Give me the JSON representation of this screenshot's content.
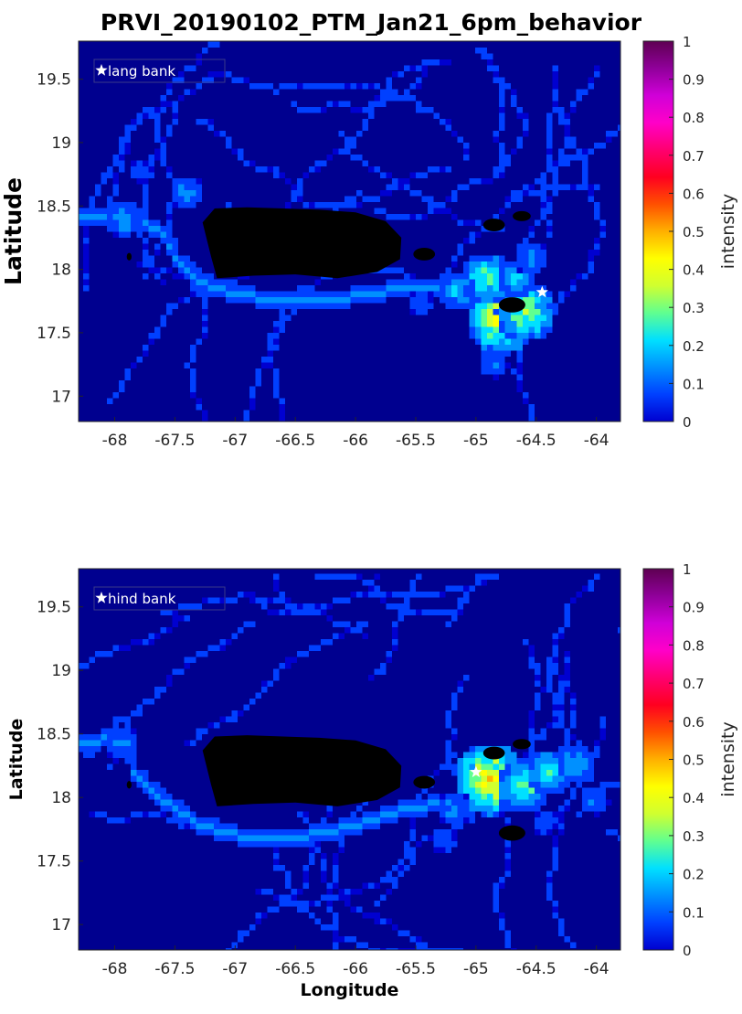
{
  "title": "PRVI_20190102_PTM_Jan21_6pm_behavior",
  "xlabel": "Longitude",
  "colors": {
    "ocean": "#00008f",
    "land": "#000000",
    "colormap": [
      "#0000d0",
      "#0040ff",
      "#0090ff",
      "#00e0ff",
      "#60ff90",
      "#d0ff30",
      "#ffff00",
      "#ffb000",
      "#ff5000",
      "#ff0020",
      "#ff0070",
      "#ff00c8",
      "#d000d8",
      "#90009a",
      "#5e0052"
    ]
  },
  "chart_data": [
    {
      "type": "heatmap",
      "panel": "top",
      "title": "",
      "xlabel": "",
      "ylabel": "Latitude",
      "colorbar_label": "intensity",
      "xlim": [
        -68.3,
        -63.8
      ],
      "ylim": [
        16.8,
        19.8
      ],
      "xticks": [
        -68,
        -67.5,
        -67,
        -66.5,
        -66,
        -65.5,
        -65,
        -64.5,
        -64
      ],
      "xtick_labels": [
        "-68",
        "-67.5",
        "-67",
        "-66.5",
        "-66",
        "-65.5",
        "-65",
        "-64.5",
        "-64"
      ],
      "yticks": [
        17,
        17.5,
        18,
        18.5,
        19,
        19.5
      ],
      "ytick_labels": [
        "17",
        "17.5",
        "18",
        "18.5",
        "19",
        "19.5"
      ],
      "colorbar_ticks": [
        0,
        0.1,
        0.2,
        0.3,
        0.4,
        0.5,
        0.6,
        0.7,
        0.8,
        0.9,
        1
      ],
      "colorbar_tick_labels": [
        "0",
        "0.1",
        "0.2",
        "0.3",
        "0.4",
        "0.5",
        "0.6",
        "0.7",
        "0.8",
        "0.9",
        "1"
      ],
      "legend": {
        "label": "lang bank",
        "location": "top-left"
      },
      "source_site": {
        "name": "lang bank",
        "lon": -64.45,
        "lat": 17.82
      },
      "hotspots": [
        {
          "lon": -64.8,
          "lat": 17.62,
          "value": 0.45
        },
        {
          "lon": -64.6,
          "lat": 17.7,
          "value": 0.35
        },
        {
          "lon": -64.95,
          "lat": 17.95,
          "value": 0.3
        },
        {
          "lon": -65.2,
          "lat": 17.85,
          "value": 0.2
        },
        {
          "lon": -64.7,
          "lat": 17.95,
          "value": 0.2
        },
        {
          "lon": -64.55,
          "lat": 18.1,
          "value": 0.15
        },
        {
          "lon": -67.95,
          "lat": 18.45,
          "value": 0.18
        },
        {
          "lon": -67.45,
          "lat": 18.65,
          "value": 0.15
        },
        {
          "lon": -67.8,
          "lat": 18.8,
          "value": 0.08
        },
        {
          "lon": -65.5,
          "lat": 17.75,
          "value": 0.1
        },
        {
          "lon": -64.9,
          "lat": 17.3,
          "value": 0.12
        }
      ]
    },
    {
      "type": "heatmap",
      "panel": "bottom",
      "title": "",
      "xlabel": "Longitude",
      "ylabel": "Latitude",
      "colorbar_label": "intensity",
      "xlim": [
        -68.3,
        -63.8
      ],
      "ylim": [
        16.8,
        19.8
      ],
      "xticks": [
        -68,
        -67.5,
        -67,
        -66.5,
        -66,
        -65.5,
        -65,
        -64.5,
        -64
      ],
      "xtick_labels": [
        "-68",
        "-67.5",
        "-67",
        "-66.5",
        "-66",
        "-65.5",
        "-65",
        "-64.5",
        "-64"
      ],
      "yticks": [
        17,
        17.5,
        18,
        18.5,
        19,
        19.5
      ],
      "ytick_labels": [
        "17",
        "17.5",
        "18",
        "18.5",
        "19",
        "19.5"
      ],
      "colorbar_ticks": [
        0,
        0.1,
        0.2,
        0.3,
        0.4,
        0.5,
        0.6,
        0.7,
        0.8,
        0.9,
        1
      ],
      "colorbar_tick_labels": [
        "0",
        "0.1",
        "0.2",
        "0.3",
        "0.4",
        "0.5",
        "0.6",
        "0.7",
        "0.8",
        "0.9",
        "1"
      ],
      "legend": {
        "label": "hind bank",
        "location": "top-left"
      },
      "source_site": {
        "name": "hind bank",
        "lon": -65.0,
        "lat": 18.2
      },
      "hotspots": [
        {
          "lon": -64.9,
          "lat": 18.15,
          "value": 0.45
        },
        {
          "lon": -64.65,
          "lat": 18.1,
          "value": 0.3
        },
        {
          "lon": -64.4,
          "lat": 18.2,
          "value": 0.25
        },
        {
          "lon": -64.2,
          "lat": 18.3,
          "value": 0.2
        },
        {
          "lon": -65.2,
          "lat": 17.95,
          "value": 0.15
        },
        {
          "lon": -67.95,
          "lat": 18.45,
          "value": 0.15
        },
        {
          "lon": -64.05,
          "lat": 18.0,
          "value": 0.12
        },
        {
          "lon": -65.3,
          "lat": 17.7,
          "value": 0.1
        },
        {
          "lon": -64.45,
          "lat": 17.85,
          "value": 0.1
        }
      ]
    }
  ]
}
